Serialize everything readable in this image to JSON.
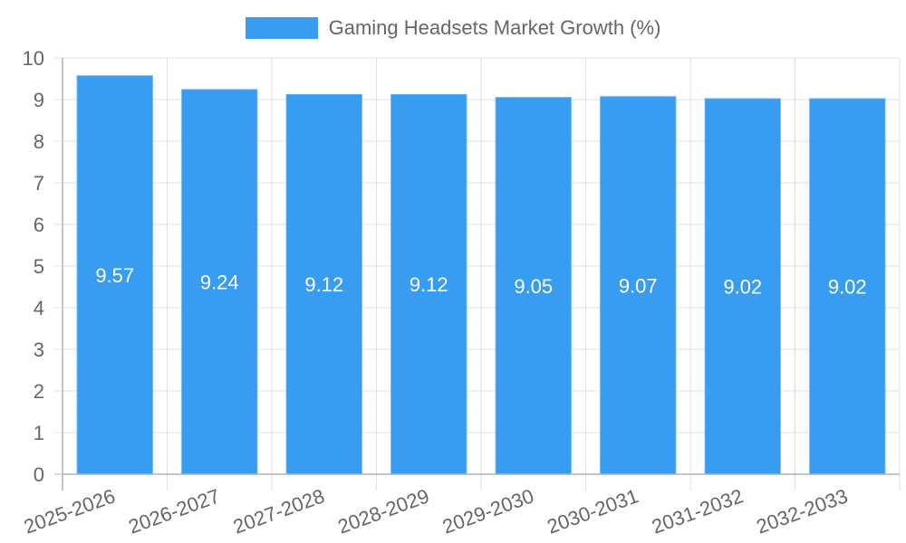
{
  "legend": {
    "label": "Gaming Headsets Market Growth (%)",
    "color": "#389cf0"
  },
  "chart_data": {
    "type": "bar",
    "title": "",
    "xlabel": "",
    "ylabel": "",
    "ylim": [
      0,
      10
    ],
    "yticks": [
      0,
      1,
      2,
      3,
      4,
      5,
      6,
      7,
      8,
      9,
      10
    ],
    "grid": true,
    "legend_position": "top",
    "categories": [
      "2025-2026",
      "2026-2027",
      "2027-2028",
      "2028-2029",
      "2029-2030",
      "2030-2031",
      "2031-2032",
      "2032-2033"
    ],
    "series": [
      {
        "name": "Gaming Headsets Market Growth (%)",
        "color": "#389cf0",
        "values": [
          9.57,
          9.24,
          9.12,
          9.12,
          9.05,
          9.07,
          9.02,
          9.02
        ]
      }
    ],
    "data_labels": [
      "9.57",
      "9.24",
      "9.12",
      "9.12",
      "9.05",
      "9.07",
      "9.02",
      "9.02"
    ]
  },
  "colors": {
    "grid": "#e0e0e0",
    "axis": "#b0b0b0",
    "text": "#666666",
    "bar": "#389cf0",
    "bar_border": "#5aaef5"
  }
}
